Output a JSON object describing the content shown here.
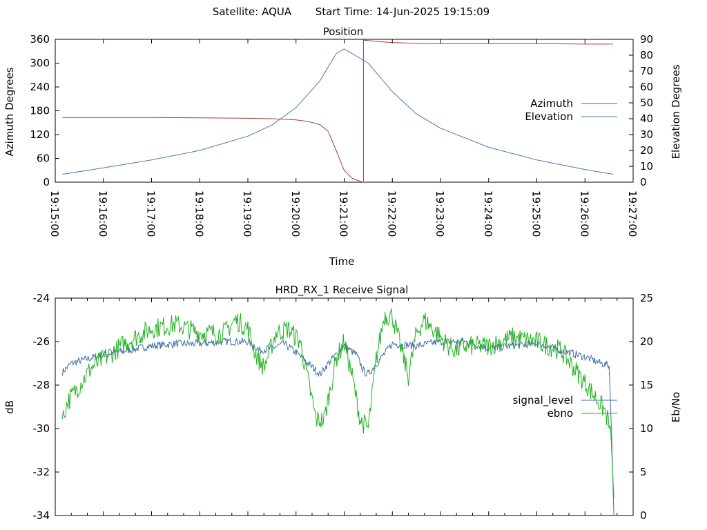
{
  "header": {
    "satellite_label": "Satellite: AQUA",
    "start_time_label": "Start Time: 14-Jun-2025 19:15:09"
  },
  "colors": {
    "azimuth": "#b03a3a",
    "elevation": "#4a78b0",
    "signal_level": "#3f6aa8",
    "ebno": "#20b020",
    "axes": "#000000",
    "background": "#ffffff"
  },
  "chart_data": [
    {
      "type": "line",
      "title": "Position",
      "xlabel": "Time",
      "ylabel": "Azimuth Degrees",
      "y2label": "Elevation Degrees",
      "x_unit": "time HH:MM:SS",
      "xlim": [
        "19:15:00",
        "19:27:00"
      ],
      "ylim": [
        0,
        360
      ],
      "y2lim": [
        0,
        90
      ],
      "xticks": [
        "19:15:00",
        "19:16:00",
        "19:17:00",
        "19:18:00",
        "19:19:00",
        "19:20:00",
        "19:21:00",
        "19:22:00",
        "19:23:00",
        "19:24:00",
        "19:25:00",
        "19:26:00",
        "19:27:00"
      ],
      "yticks": [
        0,
        60,
        120,
        180,
        240,
        300,
        360
      ],
      "y2ticks": [
        0,
        10,
        20,
        30,
        40,
        50,
        60,
        70,
        80,
        90
      ],
      "legend": "right",
      "series": [
        {
          "name": "Azimuth",
          "axis": "left",
          "x": [
            "19:15:09",
            "19:16:00",
            "19:17:00",
            "19:18:00",
            "19:19:00",
            "19:19:30",
            "19:20:00",
            "19:20:15",
            "19:20:30",
            "19:20:40",
            "19:20:50",
            "19:21:00",
            "19:21:10",
            "19:21:20",
            "19:21:24",
            "19:21:25",
            "19:21:30",
            "19:21:45",
            "19:22:00",
            "19:22:30",
            "19:23:00",
            "19:24:00",
            "19:25:00",
            "19:26:00",
            "19:26:35"
          ],
          "values": [
            163,
            163,
            163,
            162,
            161,
            160,
            157,
            153,
            145,
            128,
            80,
            30,
            10,
            2,
            0,
            358,
            357,
            354,
            352,
            350,
            349,
            349,
            349,
            348,
            348
          ]
        },
        {
          "name": "Elevation",
          "axis": "right",
          "x": [
            "19:15:09",
            "19:16:00",
            "19:17:00",
            "19:18:00",
            "19:19:00",
            "19:19:30",
            "19:20:00",
            "19:20:30",
            "19:20:50",
            "19:21:00",
            "19:21:30",
            "19:22:00",
            "19:22:30",
            "19:23:00",
            "19:24:00",
            "19:25:00",
            "19:26:00",
            "19:26:35"
          ],
          "values": [
            5,
            9,
            14,
            20,
            29,
            36,
            47,
            64,
            81,
            84,
            75,
            57,
            43,
            34,
            22,
            14,
            8,
            5
          ]
        }
      ]
    },
    {
      "type": "line",
      "title": "HRD_RX_1 Receive Signal",
      "xlabel": "",
      "ylabel": "dB",
      "y2label": "Eb/No",
      "x_unit": "time HH:MM:SS",
      "xlim": [
        "19:15:00",
        "19:27:00"
      ],
      "ylim": [
        -34,
        -24
      ],
      "y2lim": [
        0,
        25
      ],
      "yticks": [
        -34,
        -32,
        -30,
        -28,
        -26,
        -24
      ],
      "y2ticks": [
        0,
        5,
        10,
        15,
        20,
        25
      ],
      "legend": "right",
      "series": [
        {
          "name": "signal_level",
          "axis": "left",
          "x": [
            "19:15:09",
            "19:15:20",
            "19:15:40",
            "19:16:00",
            "19:16:30",
            "19:17:00",
            "19:17:30",
            "19:18:00",
            "19:18:30",
            "19:19:00",
            "19:19:15",
            "19:19:30",
            "19:19:45",
            "19:20:00",
            "19:20:15",
            "19:20:30",
            "19:20:40",
            "19:21:00",
            "19:21:15",
            "19:21:25",
            "19:21:30",
            "19:21:45",
            "19:22:00",
            "19:22:30",
            "19:23:00",
            "19:23:30",
            "19:24:00",
            "19:24:30",
            "19:25:00",
            "19:25:30",
            "19:26:00",
            "19:26:20",
            "19:26:30",
            "19:26:33",
            "19:26:36"
          ],
          "values": [
            -27.4,
            -27.0,
            -26.8,
            -26.6,
            -26.4,
            -26.2,
            -26.1,
            -26.1,
            -26.0,
            -26.0,
            -26.4,
            -26.3,
            -26.1,
            -26.5,
            -27.0,
            -27.5,
            -27.0,
            -26.2,
            -26.6,
            -27.4,
            -27.5,
            -26.8,
            -26.1,
            -26.2,
            -26.0,
            -26.0,
            -26.3,
            -26.2,
            -26.1,
            -26.4,
            -26.7,
            -27.0,
            -27.1,
            -30.0,
            -34.0
          ]
        },
        {
          "name": "ebno",
          "axis": "right",
          "x": [
            "19:15:09",
            "19:15:15",
            "19:15:30",
            "19:15:45",
            "19:16:00",
            "19:16:30",
            "19:17:00",
            "19:17:30",
            "19:18:00",
            "19:18:30",
            "19:18:45",
            "19:19:00",
            "19:19:10",
            "19:19:20",
            "19:19:35",
            "19:19:50",
            "19:20:05",
            "19:20:15",
            "19:20:25",
            "19:20:35",
            "19:20:50",
            "19:21:00",
            "19:21:10",
            "19:21:20",
            "19:21:30",
            "19:21:40",
            "19:21:50",
            "19:22:00",
            "19:22:10",
            "19:22:20",
            "19:22:30",
            "19:22:40",
            "19:22:55",
            "19:23:10",
            "19:23:20",
            "19:23:30",
            "19:24:00",
            "19:24:30",
            "19:25:00",
            "19:25:30",
            "19:25:50",
            "19:26:10",
            "19:26:25",
            "19:26:30",
            "19:26:33",
            "19:26:36"
          ],
          "values": [
            11,
            13,
            15,
            17,
            18,
            20,
            21.5,
            22,
            21,
            21,
            22.5,
            21.5,
            18.5,
            17,
            21,
            21.5,
            20,
            15.5,
            11,
            11,
            18,
            20,
            16,
            11,
            10,
            18,
            23,
            23,
            19.5,
            16,
            21,
            22.5,
            21,
            19.5,
            19,
            19.5,
            19.5,
            20.5,
            20,
            19,
            16.5,
            14,
            12,
            10.5,
            8,
            2
          ]
        }
      ]
    }
  ]
}
